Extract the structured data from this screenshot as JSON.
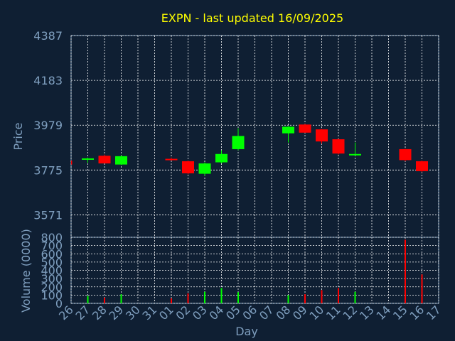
{
  "chart_data": [
    {
      "type": "candlestick",
      "title": "EXPN - last updated 16/09/2025",
      "ylabel": "Price",
      "ylim": [
        3469,
        4387
      ],
      "yticks": [
        3571,
        3775,
        3979,
        4183,
        4387
      ],
      "grid": true,
      "x_tick_labels": [
        "26",
        "27",
        "28",
        "29",
        "30",
        "31",
        "01",
        "02",
        "03",
        "04",
        "05",
        "06",
        "07",
        "08",
        "09",
        "10",
        "11",
        "12",
        "13",
        "14",
        "15",
        "16",
        "17"
      ],
      "candles": [
        {
          "day_index": -0.3,
          "open": 3800,
          "high": 3820,
          "low": 3795,
          "close": 3818,
          "color": "red"
        },
        {
          "day_index": 1,
          "open": 3822,
          "high": 3832,
          "low": 3808,
          "close": 3828,
          "color": "green"
        },
        {
          "day_index": 2,
          "open": 3840,
          "high": 3845,
          "low": 3805,
          "close": 3805,
          "color": "red"
        },
        {
          "day_index": 3,
          "open": 3800,
          "high": 3842,
          "low": 3798,
          "close": 3838,
          "color": "green"
        },
        {
          "day_index": 6,
          "open": 3826,
          "high": 3832,
          "low": 3818,
          "close": 3824,
          "color": "red"
        },
        {
          "day_index": 7,
          "open": 3815,
          "high": 3818,
          "low": 3755,
          "close": 3760,
          "color": "red"
        },
        {
          "day_index": 8,
          "open": 3758,
          "high": 3810,
          "low": 3748,
          "close": 3805,
          "color": "green"
        },
        {
          "day_index": 9,
          "open": 3810,
          "high": 3865,
          "low": 3805,
          "close": 3848,
          "color": "green"
        },
        {
          "day_index": 10,
          "open": 3870,
          "high": 3965,
          "low": 3865,
          "close": 3930,
          "color": "green"
        },
        {
          "day_index": 13,
          "open": 3942,
          "high": 3975,
          "low": 3900,
          "close": 3972,
          "color": "green"
        },
        {
          "day_index": 14,
          "open": 3982,
          "high": 3985,
          "low": 3945,
          "close": 3945,
          "color": "red"
        },
        {
          "day_index": 15,
          "open": 3960,
          "high": 3962,
          "low": 3895,
          "close": 3905,
          "color": "red"
        },
        {
          "day_index": 16,
          "open": 3915,
          "high": 3918,
          "low": 3845,
          "close": 3850,
          "color": "red"
        },
        {
          "day_index": 17,
          "open": 3844,
          "high": 3900,
          "low": 3840,
          "close": 3848,
          "color": "green"
        },
        {
          "day_index": 20,
          "open": 3870,
          "high": 3872,
          "low": 3815,
          "close": 3820,
          "color": "red"
        },
        {
          "day_index": 21,
          "open": 3815,
          "high": 3818,
          "low": 3765,
          "close": 3770,
          "color": "red"
        }
      ]
    },
    {
      "type": "bar",
      "xlabel": "Day",
      "ylabel": "Volume (0000)",
      "ylim": [
        0,
        800
      ],
      "yticks": [
        0,
        100,
        200,
        300,
        400,
        500,
        600,
        700,
        800
      ],
      "grid": true,
      "x_tick_labels": [
        "26",
        "27",
        "28",
        "29",
        "30",
        "31",
        "01",
        "02",
        "03",
        "04",
        "05",
        "06",
        "07",
        "08",
        "09",
        "10",
        "11",
        "12",
        "13",
        "14",
        "15",
        "16",
        "17"
      ],
      "bars": [
        {
          "day_index": 1,
          "value": 90,
          "color": "green"
        },
        {
          "day_index": 2,
          "value": 70,
          "color": "red"
        },
        {
          "day_index": 3,
          "value": 110,
          "color": "green"
        },
        {
          "day_index": 6,
          "value": 60,
          "color": "red"
        },
        {
          "day_index": 7,
          "value": 120,
          "color": "red"
        },
        {
          "day_index": 8,
          "value": 140,
          "color": "green"
        },
        {
          "day_index": 9,
          "value": 185,
          "color": "green"
        },
        {
          "day_index": 10,
          "value": 135,
          "color": "green"
        },
        {
          "day_index": 13,
          "value": 100,
          "color": "green"
        },
        {
          "day_index": 14,
          "value": 110,
          "color": "red"
        },
        {
          "day_index": 15,
          "value": 160,
          "color": "red"
        },
        {
          "day_index": 16,
          "value": 185,
          "color": "red"
        },
        {
          "day_index": 17,
          "value": 140,
          "color": "green"
        },
        {
          "day_index": 20,
          "value": 770,
          "color": "red"
        },
        {
          "day_index": 21,
          "value": 350,
          "color": "red"
        }
      ]
    }
  ],
  "colors": {
    "background": "#0f1f33",
    "title": "#ffff00",
    "axis_label": "#7f9fbf",
    "tick_label": "#7f9fbf",
    "axis_line": "#7f9fbf",
    "grid": "#ffffff",
    "up": "#00ff00",
    "down": "#ff0000"
  }
}
